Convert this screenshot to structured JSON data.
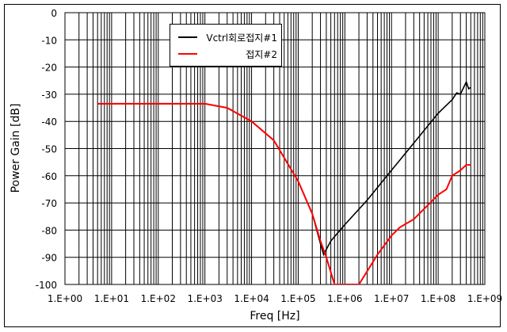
{
  "chart_data": {
    "type": "line",
    "title": "",
    "xlabel": "Freq [Hz]",
    "ylabel": "Power Gain [dB]",
    "xscale": "log",
    "xlim": [
      1,
      1000000000
    ],
    "ylim": [
      -100,
      0
    ],
    "grid": true,
    "legend_position": "upper-left-inside",
    "x_tick_labels": [
      "1.E+00",
      "1.E+01",
      "1.E+02",
      "1.E+03",
      "1.E+04",
      "1.E+05",
      "1.E+06",
      "1.E+07",
      "1.E+08",
      "1.E+09"
    ],
    "y_tick_labels": [
      "0",
      "-10",
      "-20",
      "-30",
      "-40",
      "-50",
      "-60",
      "-70",
      "-80",
      "-90",
      "-100"
    ],
    "series": [
      {
        "name": "Vctrl회로접지#1",
        "color": "#000000",
        "x": [
          5,
          100,
          1000,
          3000,
          10000,
          30000,
          100000,
          200000,
          300000,
          350000,
          500000,
          1000000,
          3000000,
          10000000,
          30000000,
          100000000,
          200000000,
          250000000,
          300000000,
          400000000,
          450000000,
          500000000
        ],
        "y": [
          -33.5,
          -33.5,
          -33.5,
          -35,
          -40,
          -47,
          -62,
          -74,
          -85,
          -89,
          -84,
          -78,
          -69,
          -58,
          -48,
          -37,
          -32,
          -29.5,
          -30,
          -25.5,
          -28,
          -27.5
        ]
      },
      {
        "name": "접지#2",
        "color": "#ff0000",
        "x": [
          5,
          100,
          1000,
          3000,
          10000,
          30000,
          100000,
          200000,
          300000,
          400000,
          600000,
          2000000,
          5000000,
          10000000,
          15000000,
          30000000,
          100000000,
          150000000,
          200000000,
          300000000,
          400000000,
          500000000
        ],
        "y": [
          -33.5,
          -33.5,
          -33.5,
          -35,
          -40,
          -47,
          -62,
          -74,
          -84,
          -90,
          -100,
          -100,
          -89,
          -82,
          -79,
          -76,
          -67,
          -65,
          -60,
          -58,
          -56,
          -56
        ]
      }
    ]
  },
  "legend": {
    "items": [
      {
        "label": "Vctrl회로접지#1",
        "color": "#000000"
      },
      {
        "label": "접지#2",
        "color": "#ff0000"
      }
    ]
  }
}
